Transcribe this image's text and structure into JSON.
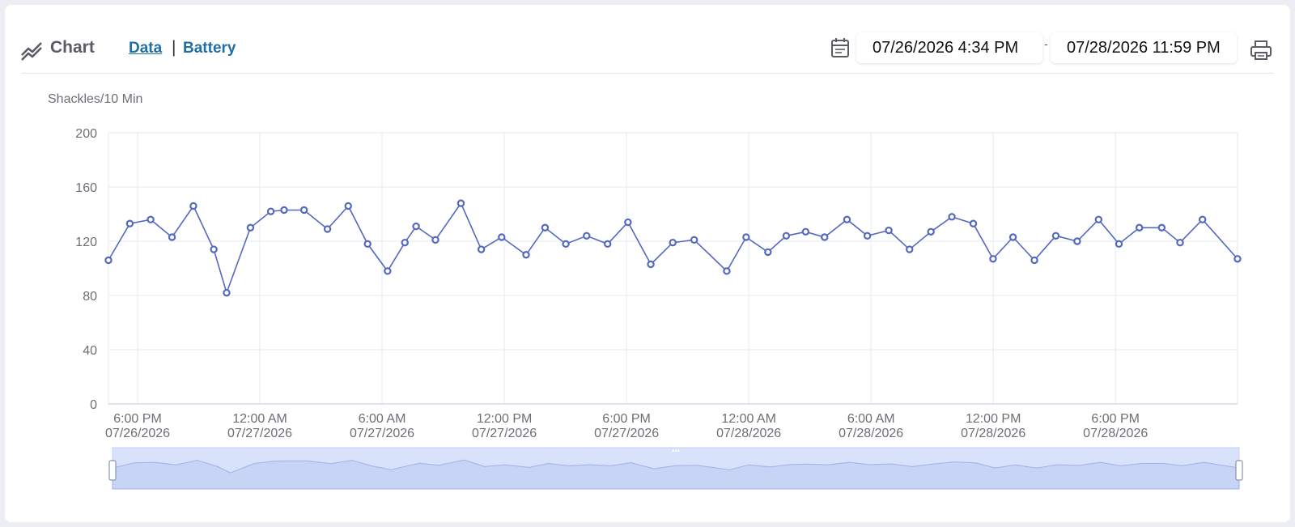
{
  "header": {
    "title": "Chart",
    "tabs": [
      {
        "label": "Data",
        "active": true
      },
      {
        "label": "Battery",
        "active": false
      }
    ],
    "separator": "|",
    "date_start": "07/26/2026 4:34 PM",
    "date_end": "07/28/2026 11:59 PM",
    "date_dash": "-"
  },
  "icons": {
    "title": "line-chart-icon",
    "calendar": "calendar-icon",
    "print": "printer-icon"
  },
  "colors": {
    "series": "#5468c0",
    "link": "#1f6ea6",
    "slider_fill": "#d9e2fb",
    "grid": "#e3ebf3"
  },
  "chart_data": {
    "type": "line",
    "title": "",
    "xlabel": "",
    "ylabel": "Shackles/10 Min",
    "ylim": [
      0,
      200
    ],
    "yticks": [
      0,
      40,
      80,
      120,
      160,
      200
    ],
    "xticks": [
      {
        "time": "6:00 PM",
        "date": "07/26/2026",
        "h": 1.43
      },
      {
        "time": "12:00 AM",
        "date": "07/27/2026",
        "h": 7.43
      },
      {
        "time": "6:00 AM",
        "date": "07/27/2026",
        "h": 13.43
      },
      {
        "time": "12:00 PM",
        "date": "07/27/2026",
        "h": 19.43
      },
      {
        "time": "6:00 PM",
        "date": "07/27/2026",
        "h": 25.43
      },
      {
        "time": "12:00 AM",
        "date": "07/28/2026",
        "h": 31.43
      },
      {
        "time": "6:00 AM",
        "date": "07/28/2026",
        "h": 37.43
      },
      {
        "time": "12:00 PM",
        "date": "07/28/2026",
        "h": 43.43
      },
      {
        "time": "6:00 PM",
        "date": "07/28/2026",
        "h": 49.43
      }
    ],
    "x_range_hours": [
      0,
      55.42
    ],
    "grid": true,
    "series": [
      {
        "name": "",
        "points": [
          [
            0.0,
            106
          ],
          [
            1.05,
            133
          ],
          [
            2.07,
            136
          ],
          [
            3.12,
            123
          ],
          [
            4.17,
            146
          ],
          [
            5.17,
            114
          ],
          [
            5.8,
            82
          ],
          [
            6.97,
            130
          ],
          [
            7.97,
            142
          ],
          [
            8.62,
            143
          ],
          [
            9.6,
            143
          ],
          [
            10.75,
            129
          ],
          [
            11.77,
            146
          ],
          [
            12.72,
            118
          ],
          [
            13.7,
            98
          ],
          [
            14.55,
            119
          ],
          [
            15.1,
            131
          ],
          [
            16.05,
            121
          ],
          [
            17.3,
            148
          ],
          [
            18.3,
            114
          ],
          [
            19.3,
            123
          ],
          [
            20.5,
            110
          ],
          [
            21.43,
            130
          ],
          [
            22.45,
            118
          ],
          [
            23.47,
            124
          ],
          [
            24.5,
            118
          ],
          [
            25.5,
            134
          ],
          [
            26.62,
            103
          ],
          [
            27.7,
            119
          ],
          [
            28.75,
            121
          ],
          [
            30.35,
            98
          ],
          [
            31.3,
            123
          ],
          [
            32.37,
            112
          ],
          [
            33.27,
            124
          ],
          [
            34.22,
            127
          ],
          [
            35.15,
            123
          ],
          [
            36.25,
            136
          ],
          [
            37.25,
            124
          ],
          [
            38.3,
            128
          ],
          [
            39.32,
            114
          ],
          [
            40.37,
            127
          ],
          [
            41.4,
            138
          ],
          [
            42.45,
            133
          ],
          [
            43.42,
            107
          ],
          [
            44.4,
            123
          ],
          [
            45.45,
            106
          ],
          [
            46.5,
            124
          ],
          [
            47.55,
            120
          ],
          [
            48.6,
            136
          ],
          [
            49.6,
            118
          ],
          [
            50.6,
            130
          ],
          [
            51.7,
            130
          ],
          [
            52.6,
            119
          ],
          [
            53.7,
            136
          ],
          [
            55.42,
            107
          ]
        ]
      }
    ]
  }
}
